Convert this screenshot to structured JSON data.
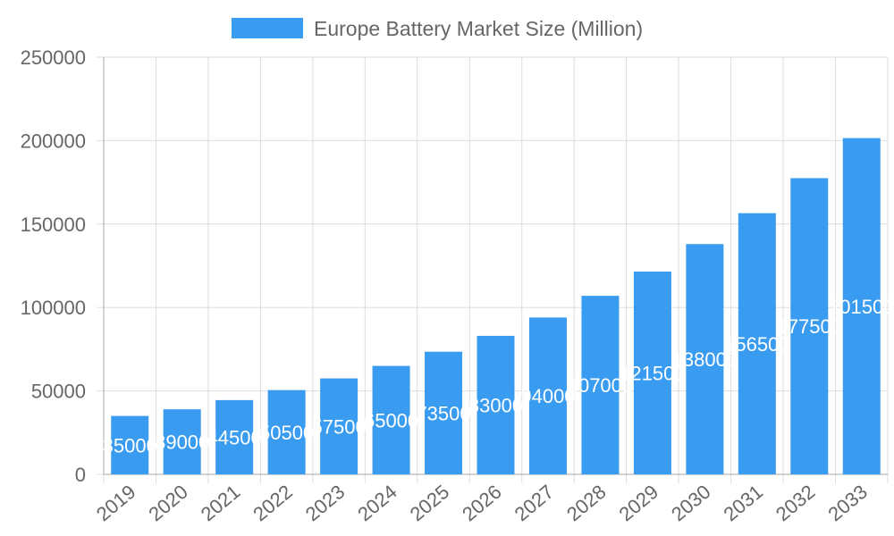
{
  "chart_data": {
    "type": "bar",
    "title": "",
    "legend": {
      "label": "Europe Battery Market Size (Million)",
      "placement": "top"
    },
    "categories": [
      "2019",
      "2020",
      "2021",
      "2022",
      "2023",
      "2024",
      "2025",
      "2026",
      "2027",
      "2028",
      "2029",
      "2030",
      "2031",
      "2032",
      "2033"
    ],
    "series": [
      {
        "name": "Europe Battery Market Size (Million)",
        "values": [
          35000,
          39000,
          44500,
          50500,
          57500,
          65000,
          73500,
          83000,
          94000,
          107000,
          121500,
          138000,
          156500,
          177500,
          201500
        ]
      }
    ],
    "ylim": [
      0,
      250000
    ],
    "yticks": [
      0,
      50000,
      100000,
      150000,
      200000,
      250000
    ],
    "grid": true,
    "bar_color": "#3a9cf0",
    "data_labels": "inside-center"
  }
}
